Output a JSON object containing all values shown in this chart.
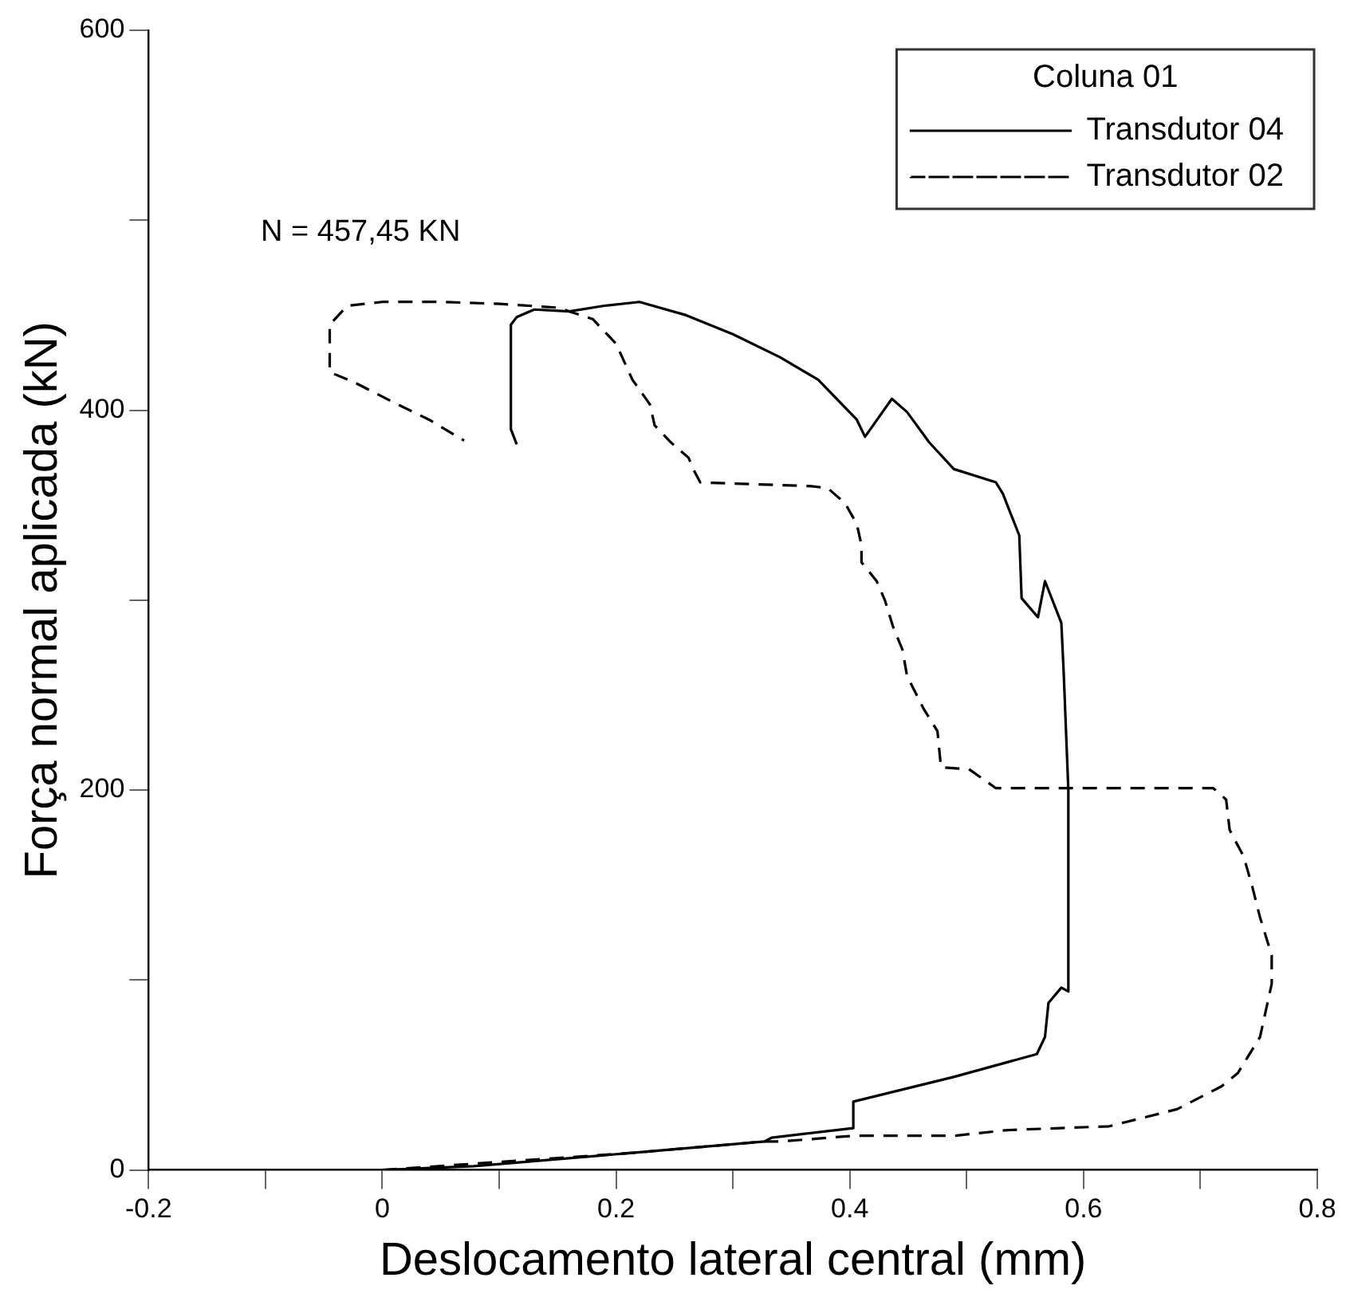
{
  "chart_data": {
    "type": "line",
    "xlabel": "Deslocamento lateral central (mm)",
    "ylabel": "Força normal aplicada (kN)",
    "legend_title": "Coluna 01",
    "legend": "top right",
    "annotations": [
      "N = 457,45 KN"
    ],
    "xlim": [
      -0.2,
      0.8
    ],
    "xticks": [
      -0.2,
      {
        "value": -0.1,
        "label": null
      },
      0,
      {
        "value": 0.1,
        "label": null
      },
      0.2,
      {
        "value": 0.3,
        "label": null
      },
      0.4,
      {
        "value": 0.5,
        "label": null
      },
      0.6,
      {
        "value": 0.7,
        "label": null
      },
      0.8
    ],
    "ylim": [
      0,
      600
    ],
    "yticks": [
      0,
      {
        "value": 100,
        "label": null
      },
      200,
      {
        "value": 300,
        "label": null
      },
      400,
      {
        "value": 500,
        "label": null
      },
      600
    ],
    "series": [
      {
        "name": "Transdutor 04",
        "color": "#000000",
        "line_style": "solid",
        "x": [
          0,
          0.078,
          0.214,
          0.327,
          0.333,
          0.403,
          0.403,
          0.489,
          0.56,
          0.567,
          0.57,
          0.581,
          0.587,
          0.587,
          0.583,
          0.581,
          0.567,
          0.561,
          0.547,
          0.545,
          0.531,
          0.525,
          0.489,
          0.468,
          0.449,
          0.436,
          0.413,
          0.406,
          0.373,
          0.34,
          0.3,
          0.26,
          0.22,
          0.19,
          0.16,
          0.13,
          0.115,
          0.11,
          0.11,
          0.115
        ],
        "values": [
          0,
          2,
          9,
          15,
          17,
          22,
          36,
          49,
          61,
          70,
          88,
          96,
          94,
          200,
          262,
          288,
          310,
          291,
          301,
          334,
          356,
          362,
          369,
          383,
          399,
          406,
          386,
          395,
          416,
          428,
          440,
          450,
          457,
          455,
          452,
          453,
          449,
          445,
          390,
          382
        ]
      },
      {
        "name": "Transdutor 02",
        "color": "#000000",
        "line_style": "dashed",
        "x": [
          0,
          0.214,
          0.327,
          0.341,
          0.403,
          0.489,
          0.535,
          0.622,
          0.68,
          0.718,
          0.732,
          0.751,
          0.761,
          0.761,
          0.751,
          0.744,
          0.737,
          0.725,
          0.722,
          0.711,
          0.525,
          0.502,
          0.478,
          0.475,
          0.463,
          0.449,
          0.445,
          0.437,
          0.43,
          0.423,
          0.41,
          0.41,
          0.406,
          0.396,
          0.381,
          0.367,
          0.272,
          0.266,
          0.262,
          0.247,
          0.233,
          0.229,
          0.214,
          0.2,
          0.18,
          0.15,
          0.1,
          0.05,
          0,
          -0.03,
          -0.045,
          -0.045,
          -0.025,
          0.01,
          0.04,
          0.07
        ],
        "values": [
          0,
          9,
          15,
          15,
          18,
          18,
          21,
          23,
          32,
          44,
          51,
          70,
          98,
          113,
          133,
          150,
          165,
          179,
          195,
          201,
          201,
          211,
          212,
          231,
          243,
          260,
          274,
          286,
          300,
          310,
          320,
          329,
          340,
          351,
          359,
          360,
          362,
          369,
          375,
          383,
          392,
          403,
          416,
          435,
          448,
          454,
          456,
          457,
          457,
          455,
          445,
          420,
          415,
          404,
          395,
          384
        ]
      }
    ]
  }
}
